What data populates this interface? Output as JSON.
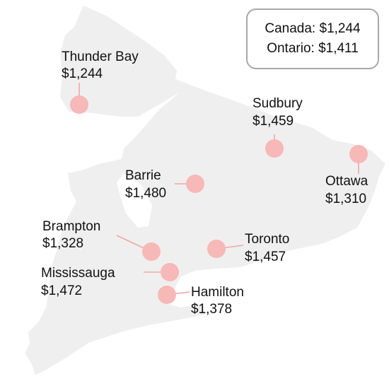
{
  "summary": {
    "canada_label": "Canada:",
    "canada_value": "$1,244",
    "ontario_label": "Ontario:",
    "ontario_value": "$1,411"
  },
  "colors": {
    "land": "#efefef",
    "marker": "#f7b8b8",
    "leader": "#f4a6a6",
    "text": "#111111",
    "box_border": "#a8a8a8"
  },
  "cities": [
    {
      "id": "thunder-bay",
      "name": "Thunder Bay",
      "value": "$1,244"
    },
    {
      "id": "sudbury",
      "name": "Sudbury",
      "value": "$1,459"
    },
    {
      "id": "ottawa",
      "name": "Ottawa",
      "value": "$1,310"
    },
    {
      "id": "barrie",
      "name": "Barrie",
      "value": "$1,480"
    },
    {
      "id": "brampton",
      "name": "Brampton",
      "value": "$1,328"
    },
    {
      "id": "toronto",
      "name": "Toronto",
      "value": "$1,457"
    },
    {
      "id": "mississauga",
      "name": "Mississauga",
      "value": "$1,472"
    },
    {
      "id": "hamilton",
      "name": "Hamilton",
      "value": "$1,378"
    }
  ]
}
